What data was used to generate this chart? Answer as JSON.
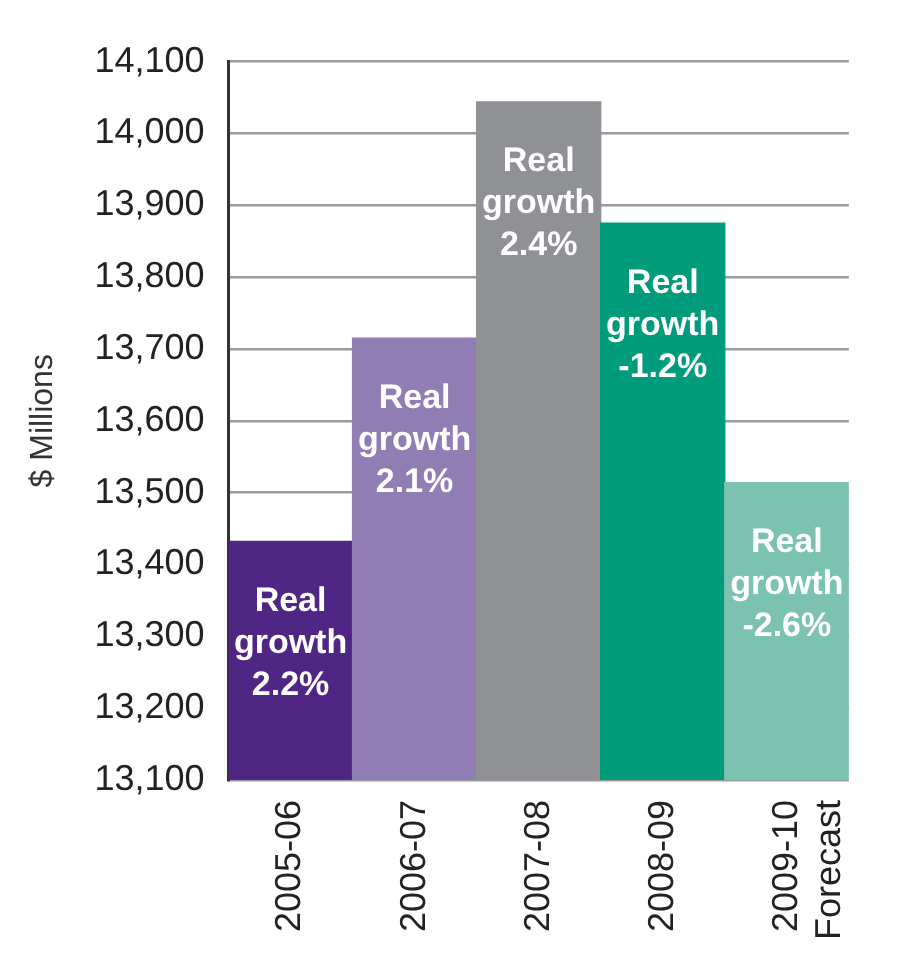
{
  "chart_data": {
    "type": "bar",
    "ylabel": "$ Millions",
    "categories": [
      "2005-06",
      "2006-07",
      "2007-08",
      "2008-09",
      "2009-10 Forecast"
    ],
    "values": [
      13432,
      13715,
      14044,
      13875,
      13514
    ],
    "colors": [
      "#4f2683",
      "#8f7db3",
      "#909195",
      "#009b7a",
      "#7cc2b0"
    ],
    "annotations": [
      "Real growth 2.2%",
      "Real growth 2.1%",
      "Real growth 2.4%",
      "Real growth -1.2%",
      "Real growth -2.6%"
    ],
    "ylim": [
      13100,
      14100
    ],
    "yticks": [
      {
        "value": 13100,
        "label": "13,100"
      },
      {
        "value": 13200,
        "label": "13,200"
      },
      {
        "value": 13300,
        "label": "13,300"
      },
      {
        "value": 13400,
        "label": "13,400"
      },
      {
        "value": 13500,
        "label": "13,500"
      },
      {
        "value": 13600,
        "label": "13,600"
      },
      {
        "value": 13700,
        "label": "13,700"
      },
      {
        "value": 13800,
        "label": "13,800"
      },
      {
        "value": 13900,
        "label": "13,900"
      },
      {
        "value": 14000,
        "label": "14,000"
      },
      {
        "value": 14100,
        "label": "14,100"
      }
    ],
    "grid": "y",
    "legend": false
  }
}
